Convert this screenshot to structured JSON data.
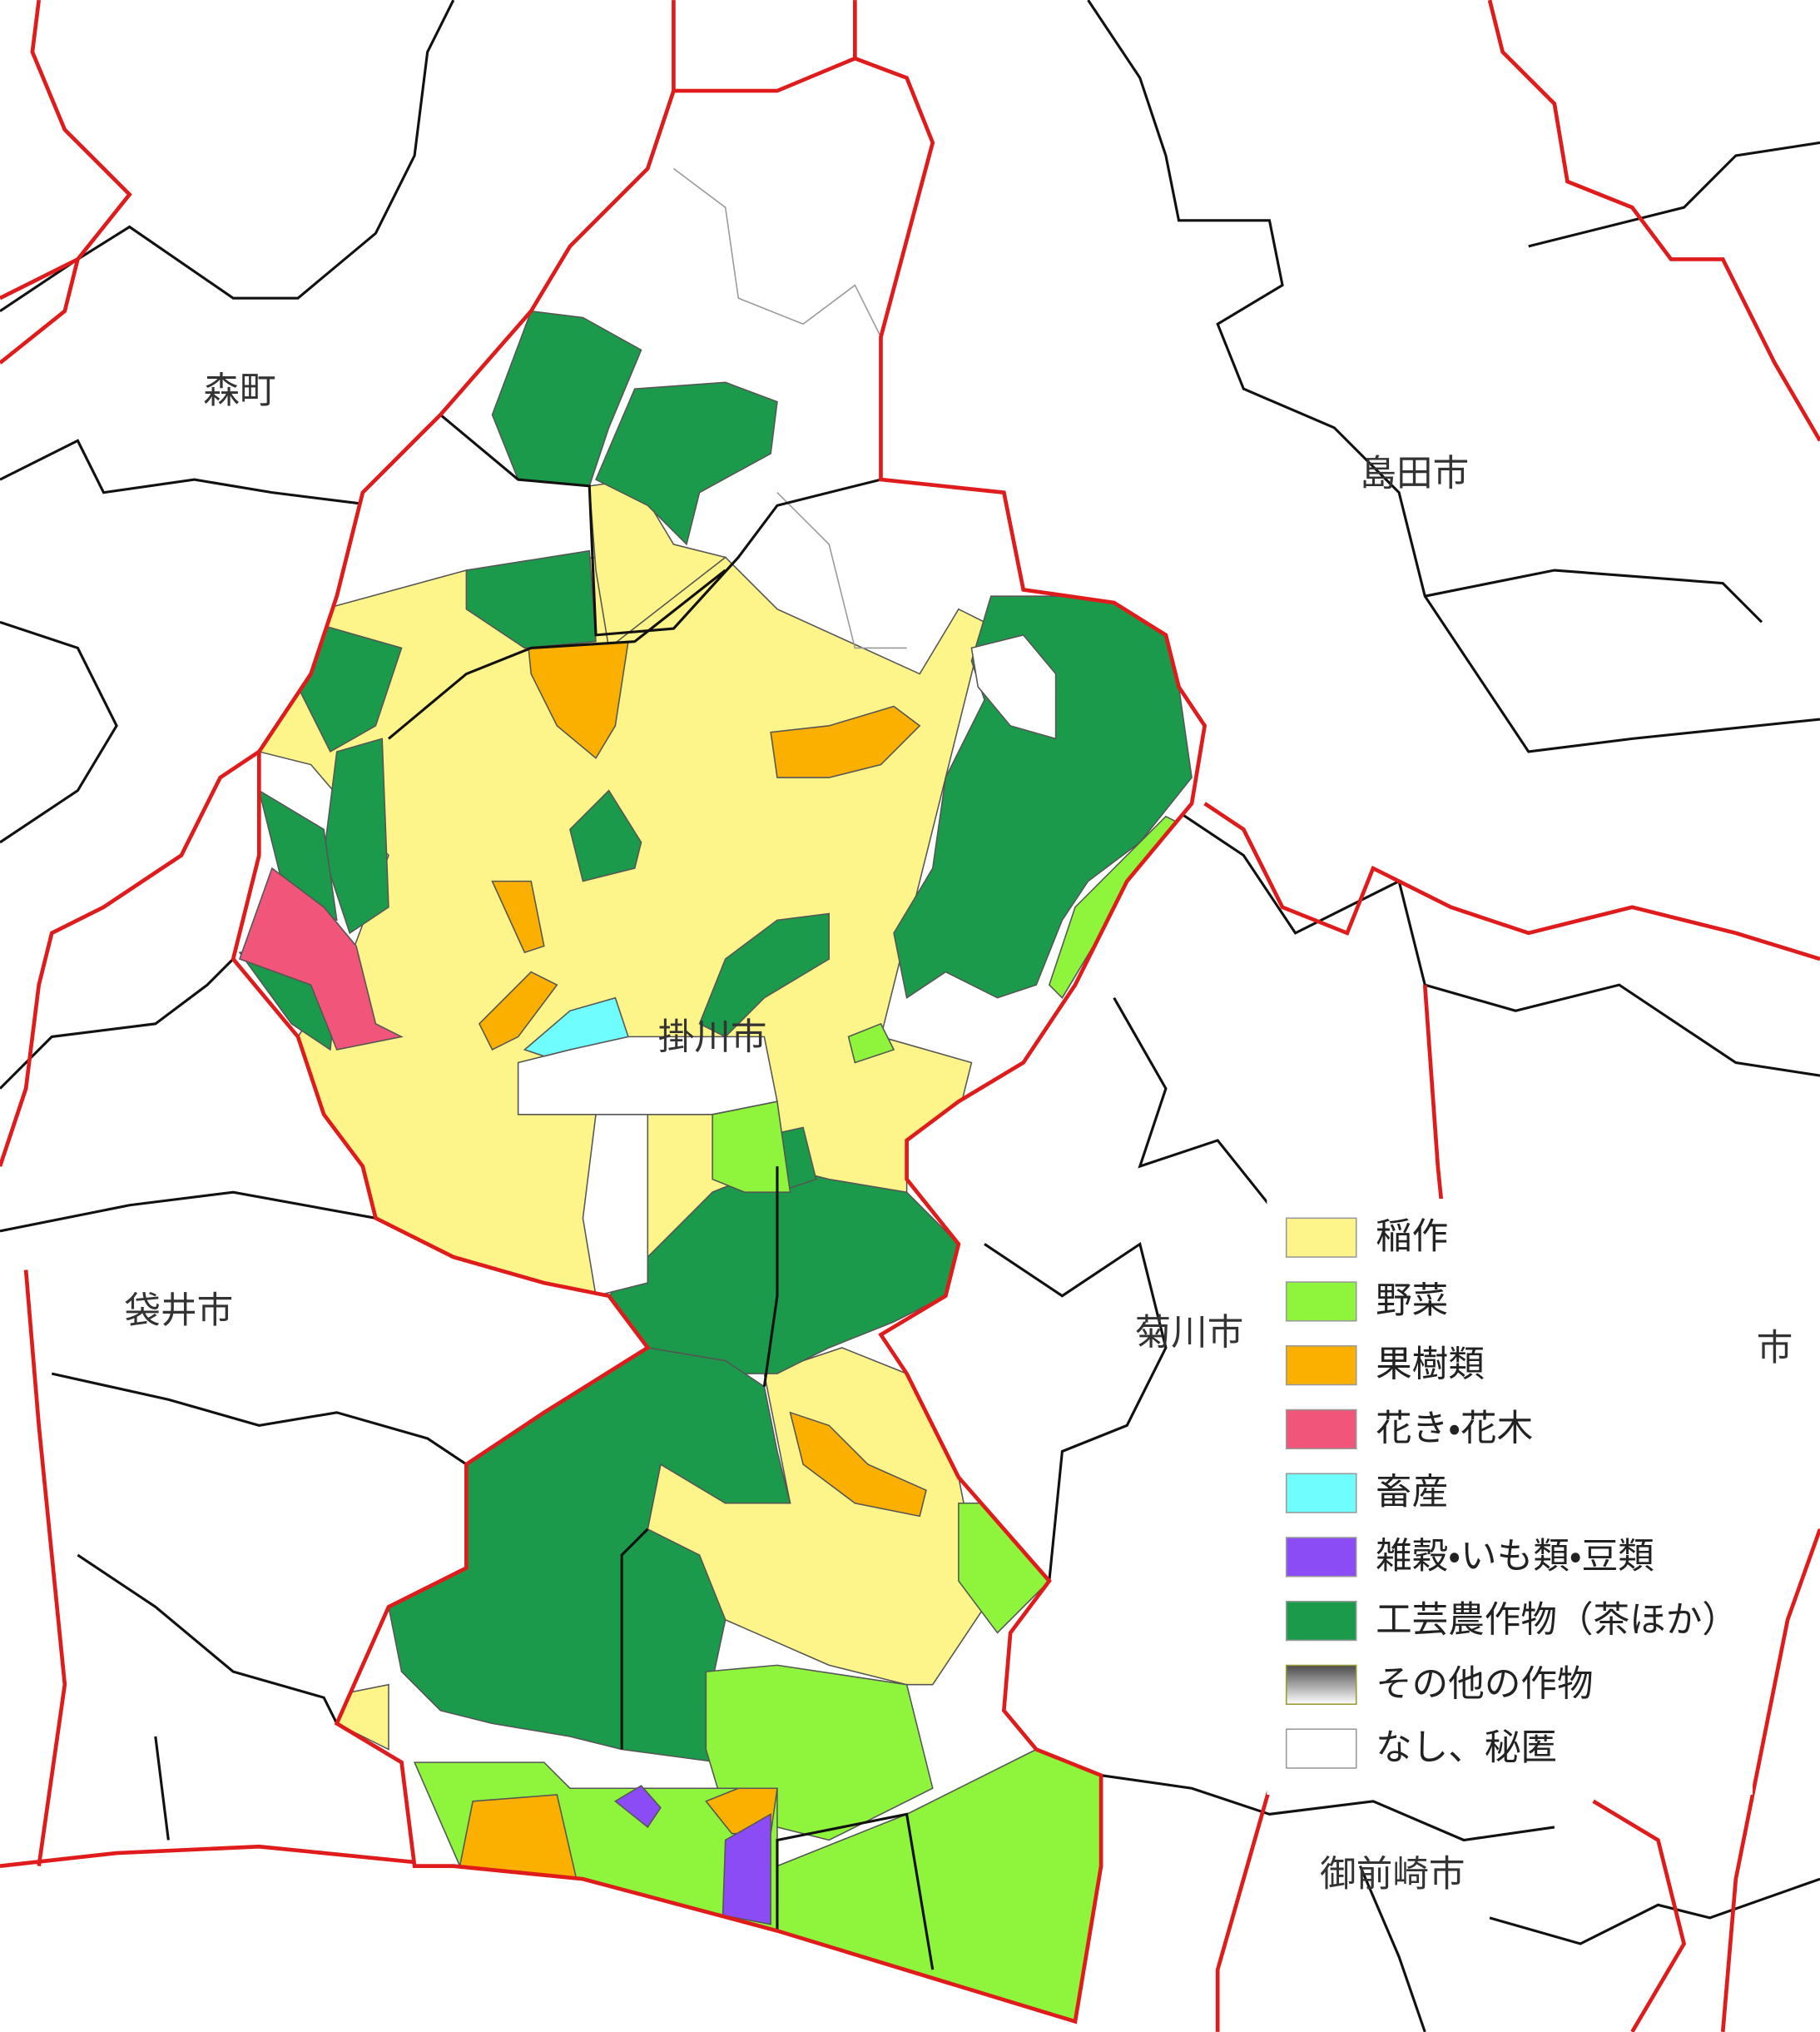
{
  "map": {
    "place_labels": [
      "森町",
      "島田市",
      "掛川市",
      "袋井市",
      "菊川市",
      "御前崎市",
      "市"
    ],
    "legend": {
      "items": [
        {
          "label": "稲作",
          "color": "#fdf48a"
        },
        {
          "label": "野菜",
          "color": "#8ff43c"
        },
        {
          "label": "果樹類",
          "color": "#fbb000"
        },
        {
          "label": "花き・花木",
          "color": "#f1557a"
        },
        {
          "label": "畜産",
          "color": "#6ffdfd"
        },
        {
          "label": "雑穀・いも類・豆類",
          "color": "#8b4cf5"
        },
        {
          "label": "工芸農作物（茶ほか）",
          "color": "#1b9a4b"
        },
        {
          "label": "その他の作物",
          "gradient": [
            "#4a4a4a",
            "#ffffff"
          ]
        },
        {
          "label": "なし、秘匿",
          "color": "#ffffff"
        }
      ]
    }
  }
}
